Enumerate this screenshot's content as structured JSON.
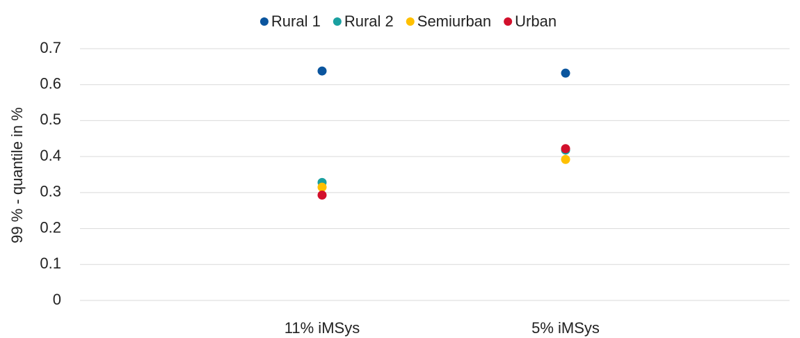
{
  "chart_data": {
    "type": "scatter",
    "y_label": "99 % - quantile in %",
    "categories": [
      "11% iMSys",
      "5% iMSys"
    ],
    "series": [
      {
        "name": "Rural 1",
        "color": "#0a559e",
        "values": [
          0.638,
          0.632
        ]
      },
      {
        "name": "Rural 2",
        "color": "#1aa0a0",
        "values": [
          0.328,
          0.418
        ]
      },
      {
        "name": "Semiurban",
        "color": "#ffc000",
        "values": [
          0.315,
          0.392
        ]
      },
      {
        "name": "Urban",
        "color": "#d2102c",
        "values": [
          0.293,
          0.422
        ]
      }
    ],
    "ylim": [
      0,
      0.7
    ],
    "yticks": [
      0,
      0.1,
      0.2,
      0.3,
      0.4,
      0.5,
      0.6,
      0.7
    ],
    "grid": true,
    "legend": "top"
  }
}
